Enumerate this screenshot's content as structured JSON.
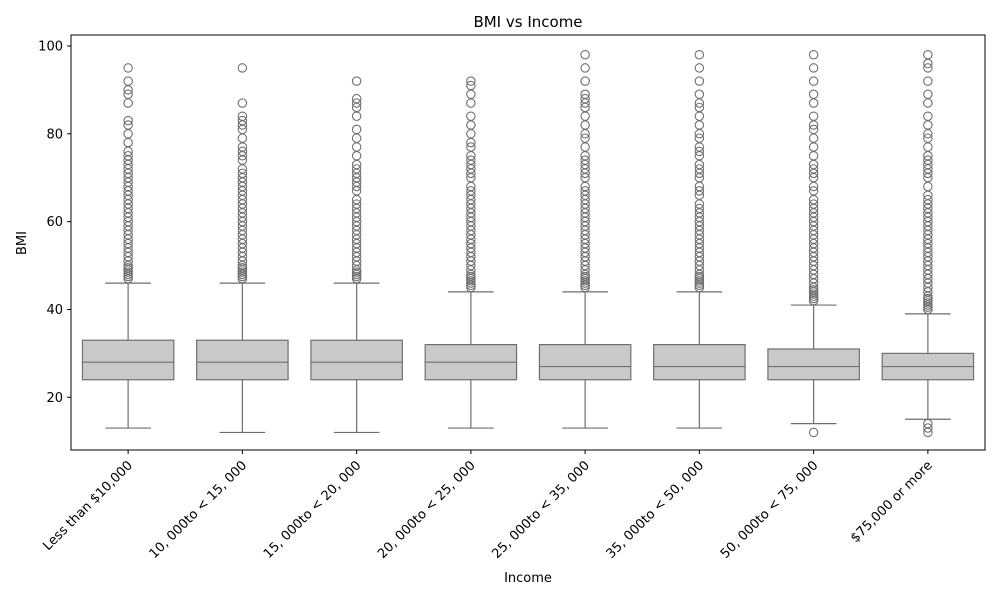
{
  "chart_data": {
    "type": "box",
    "title": "BMI vs Income",
    "xlabel": "Income",
    "ylabel": "BMI",
    "ylim": [
      8,
      102.5
    ],
    "yticks": [
      20,
      40,
      60,
      80,
      100
    ],
    "grid": false,
    "legend": "none",
    "colors": {
      "box_fill": "#c9c9c9",
      "line": "#6f6f6f",
      "outlier_stroke": "#6f6f6f"
    },
    "categories": [
      "Less than $10,000",
      "$10,000 to < $15,000",
      "$15,000 to < $20,000",
      "$20,000 to < $25,000",
      "$25,000 to < $35,000",
      "$35,000 to < $50,000",
      "$50,000 to < $75,000",
      "$75,000 or more"
    ],
    "category_labels_rendered": [
      "Less than $10,000",
      "10, 000to < 15, 000",
      "15, 000to < 20, 000",
      "20, 000to < 25, 000",
      "25, 000to < 35, 000",
      "35, 000to < 50, 000",
      "50, 000to < 75, 000",
      "$75,000 or more"
    ],
    "boxes": [
      {
        "whisker_low": 13,
        "q1": 24,
        "median": 28,
        "q3": 33,
        "whisker_high": 46
      },
      {
        "whisker_low": 12,
        "q1": 24,
        "median": 28,
        "q3": 33,
        "whisker_high": 46
      },
      {
        "whisker_low": 12,
        "q1": 24,
        "median": 28,
        "q3": 33,
        "whisker_high": 46
      },
      {
        "whisker_low": 13,
        "q1": 24,
        "median": 28,
        "q3": 32,
        "whisker_high": 44
      },
      {
        "whisker_low": 13,
        "q1": 24,
        "median": 27,
        "q3": 32,
        "whisker_high": 44
      },
      {
        "whisker_low": 13,
        "q1": 24,
        "median": 27,
        "q3": 32,
        "whisker_high": 44
      },
      {
        "whisker_low": 14,
        "q1": 24,
        "median": 27,
        "q3": 31,
        "whisker_high": 41
      },
      {
        "whisker_low": 15,
        "q1": 24,
        "median": 27,
        "q3": 30,
        "whisker_high": 39
      }
    ],
    "outliers": [
      [
        47,
        47.5,
        48,
        48.5,
        49,
        49.5,
        50,
        51,
        52,
        53,
        54,
        55,
        56,
        57,
        58,
        59,
        60,
        61,
        62,
        63,
        64,
        65,
        66,
        67,
        68,
        69,
        70,
        71,
        72,
        73,
        74,
        75,
        76,
        78,
        80,
        82,
        83,
        87,
        89,
        90,
        92,
        95
      ],
      [
        47,
        47.5,
        48,
        48.5,
        49,
        49.5,
        50,
        51,
        52,
        53,
        54,
        55,
        56,
        57,
        58,
        59,
        60,
        61,
        62,
        63,
        64,
        65,
        66,
        67,
        68,
        69,
        70,
        71,
        72,
        74,
        75,
        76,
        77,
        79,
        81,
        82,
        83,
        84,
        87,
        95
      ],
      [
        47,
        47.5,
        48,
        48.5,
        49,
        50,
        51,
        52,
        53,
        54,
        55,
        56,
        57,
        58,
        59,
        60,
        61,
        62,
        63,
        64,
        65,
        67,
        68,
        69,
        70,
        71,
        72,
        73,
        75,
        77,
        79,
        81,
        84,
        86,
        87,
        88,
        92
      ],
      [
        45,
        45.5,
        46,
        46.5,
        47,
        47.5,
        48,
        49,
        50,
        51,
        52,
        53,
        54,
        55,
        56,
        57,
        58,
        59,
        60,
        61,
        62,
        63,
        64,
        65,
        66,
        67,
        68,
        70,
        71,
        72,
        73,
        74,
        75,
        77,
        78,
        80,
        82,
        84,
        87,
        89,
        91,
        92
      ],
      [
        45,
        45.5,
        46,
        46.5,
        47,
        47.5,
        48,
        49,
        50,
        51,
        52,
        53,
        54,
        55,
        56,
        57,
        58,
        59,
        60,
        61,
        62,
        63,
        64,
        65,
        66,
        67,
        68,
        70,
        71,
        72,
        73,
        74,
        75,
        77,
        79,
        80,
        82,
        84,
        86,
        87,
        88,
        89,
        92,
        95,
        98
      ],
      [
        45,
        45.5,
        46,
        46.5,
        47,
        47.5,
        48,
        49,
        50,
        51,
        52,
        53,
        54,
        55,
        56,
        57,
        58,
        59,
        60,
        61,
        62,
        63,
        64,
        66,
        67,
        68,
        70,
        71,
        72,
        73,
        75,
        76,
        77,
        79,
        80,
        82,
        84,
        86,
        87,
        89,
        92,
        95,
        98
      ],
      [
        12,
        42,
        42.5,
        43,
        43.5,
        44,
        44.5,
        45,
        46,
        47,
        48,
        49,
        50,
        51,
        52,
        53,
        54,
        55,
        56,
        57,
        58,
        59,
        60,
        61,
        62,
        63,
        64,
        65,
        67,
        68,
        70,
        71,
        72,
        73,
        75,
        77,
        79,
        81,
        82,
        84,
        87,
        89,
        92,
        95,
        98
      ],
      [
        12,
        13,
        14,
        40,
        40.5,
        41,
        41.5,
        42,
        42.5,
        43,
        44,
        45,
        46,
        47,
        48,
        49,
        50,
        51,
        52,
        53,
        54,
        55,
        56,
        57,
        58,
        59,
        60,
        61,
        62,
        63,
        64,
        65,
        66,
        68,
        70,
        71,
        72,
        73,
        74,
        75,
        77,
        79,
        80,
        82,
        84,
        87,
        89,
        92,
        95,
        96,
        98
      ]
    ]
  }
}
